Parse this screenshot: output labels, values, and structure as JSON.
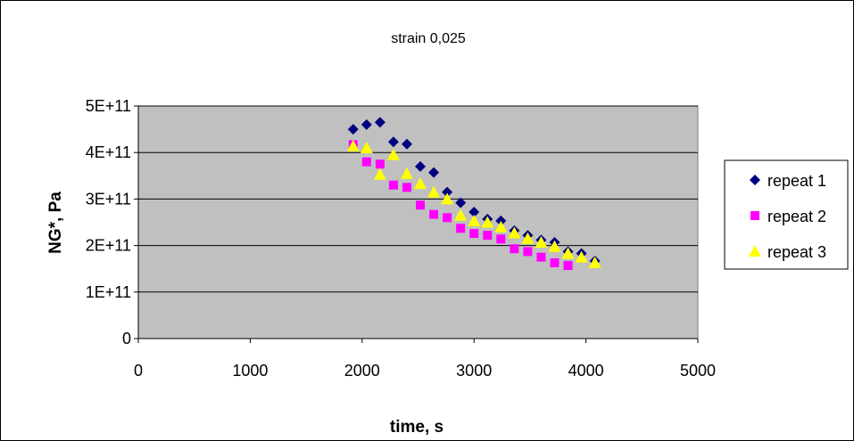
{
  "chart_data": {
    "type": "scatter",
    "title": "strain 0,025",
    "xlabel": "time, s",
    "ylabel": "NG*, Pa",
    "xlim": [
      0,
      5000
    ],
    "ylim": [
      0,
      500000000000
    ],
    "x_ticks": [
      0,
      1000,
      2000,
      3000,
      4000,
      5000
    ],
    "x_tick_labels": [
      "0",
      "1000",
      "2000",
      "3000",
      "4000",
      "5000"
    ],
    "y_ticks": [
      0,
      100000000000,
      200000000000,
      300000000000,
      400000000000,
      500000000000
    ],
    "y_tick_labels": [
      "0",
      "1E+11",
      "2E+11",
      "3E+11",
      "4E+11",
      "5E+11"
    ],
    "grid": "horizontal",
    "plot_background": "#c0c0c0",
    "legend_position": "right",
    "series": [
      {
        "name": "repeat 1",
        "marker": "diamond",
        "color": "#000080",
        "points": [
          [
            1920,
            450000000000
          ],
          [
            2040,
            460000000000
          ],
          [
            2160,
            465000000000
          ],
          [
            2280,
            423000000000
          ],
          [
            2400,
            418000000000
          ],
          [
            2520,
            370000000000
          ],
          [
            2640,
            357000000000
          ],
          [
            2760,
            315000000000
          ],
          [
            2880,
            292000000000
          ],
          [
            3000,
            272000000000
          ],
          [
            3120,
            257000000000
          ],
          [
            3240,
            253000000000
          ],
          [
            3360,
            232000000000
          ],
          [
            3480,
            222000000000
          ],
          [
            3600,
            212000000000
          ],
          [
            3720,
            207000000000
          ],
          [
            3840,
            187000000000
          ],
          [
            3960,
            183000000000
          ],
          [
            4080,
            167000000000
          ]
        ]
      },
      {
        "name": "repeat 2",
        "marker": "square",
        "color": "#ff00ff",
        "points": [
          [
            1920,
            417000000000
          ],
          [
            2040,
            380000000000
          ],
          [
            2160,
            375000000000
          ],
          [
            2280,
            330000000000
          ],
          [
            2400,
            325000000000
          ],
          [
            2520,
            287000000000
          ],
          [
            2640,
            267000000000
          ],
          [
            2760,
            260000000000
          ],
          [
            2880,
            237000000000
          ],
          [
            3000,
            226000000000
          ],
          [
            3120,
            222000000000
          ],
          [
            3240,
            214000000000
          ],
          [
            3360,
            193000000000
          ],
          [
            3480,
            187000000000
          ],
          [
            3600,
            175000000000
          ],
          [
            3720,
            163000000000
          ],
          [
            3840,
            157000000000
          ]
        ]
      },
      {
        "name": "repeat 3",
        "marker": "triangle",
        "color": "#ffff00",
        "points": [
          [
            1920,
            414000000000
          ],
          [
            2040,
            410000000000
          ],
          [
            2160,
            353000000000
          ],
          [
            2280,
            395000000000
          ],
          [
            2400,
            355000000000
          ],
          [
            2520,
            333000000000
          ],
          [
            2640,
            315000000000
          ],
          [
            2760,
            300000000000
          ],
          [
            2880,
            265000000000
          ],
          [
            3000,
            253000000000
          ],
          [
            3120,
            250000000000
          ],
          [
            3240,
            240000000000
          ],
          [
            3360,
            227000000000
          ],
          [
            3480,
            215000000000
          ],
          [
            3600,
            207000000000
          ],
          [
            3720,
            198000000000
          ],
          [
            3840,
            183000000000
          ],
          [
            3960,
            175000000000
          ],
          [
            4080,
            163000000000
          ]
        ]
      }
    ]
  }
}
